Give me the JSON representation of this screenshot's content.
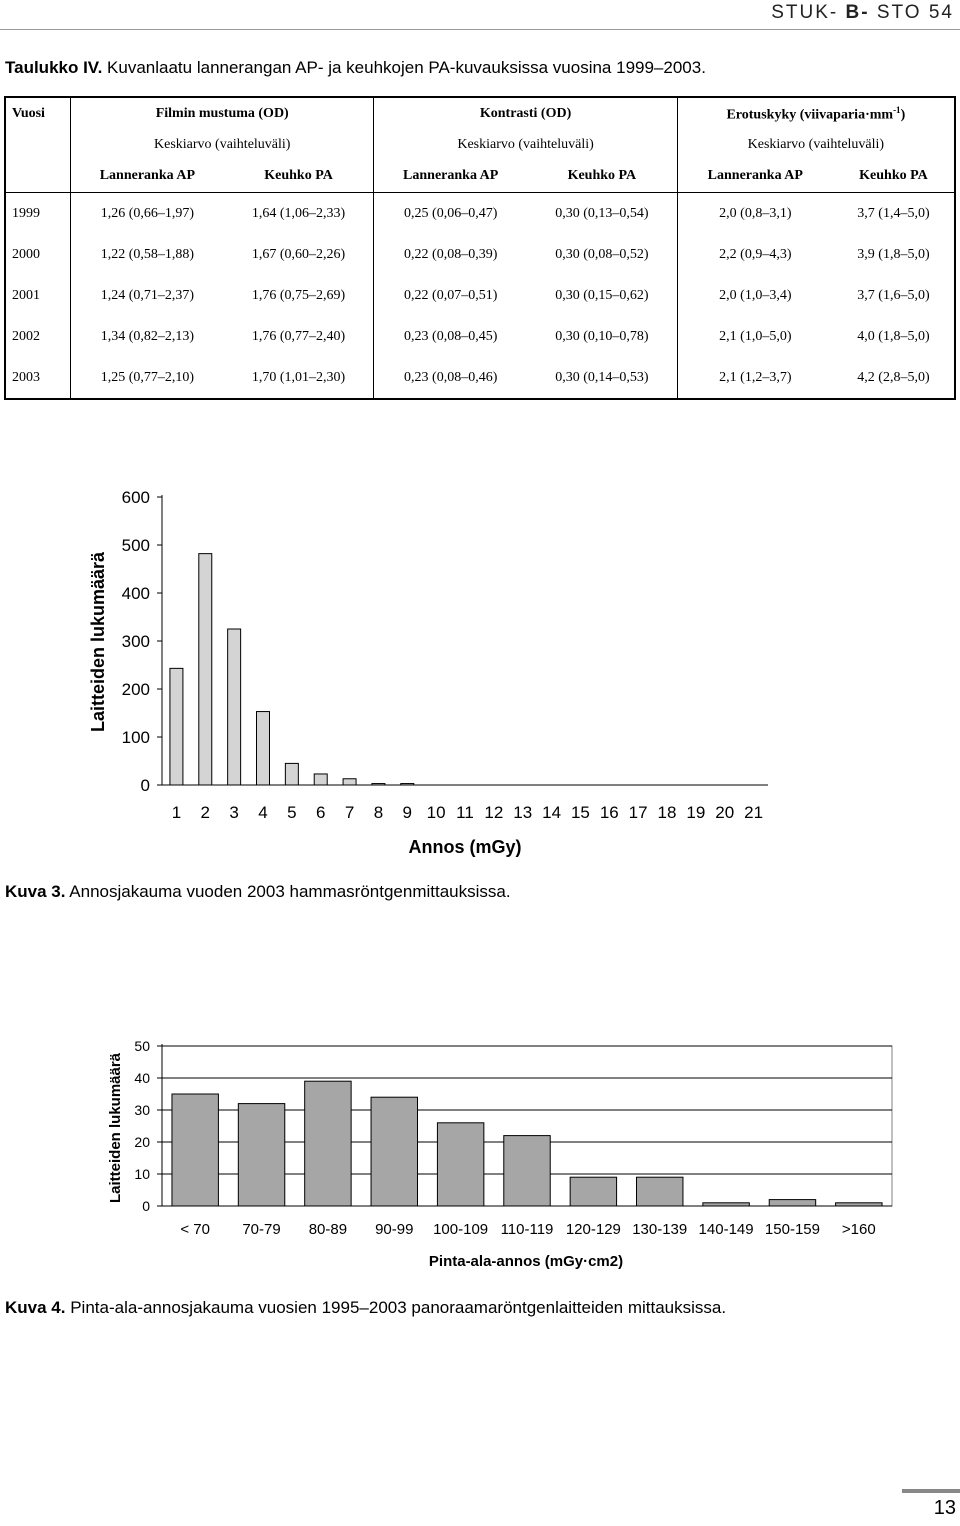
{
  "header": {
    "series_prefix": "STUK-",
    "series_bold": "B-",
    "series_suffix": "STO 54"
  },
  "table": {
    "caption_label": "Taulukko IV.",
    "caption_text": "Kuvanlaatu lannerangan AP- ja keuhkojen PA-kuvauksissa vuosina 1999–2003.",
    "col_year": "Vuosi",
    "groups": [
      {
        "title": "Filmin mustuma (OD)",
        "sup": "",
        "sub": "Keskiarvo (vaihteluväli)"
      },
      {
        "title": "Kontrasti (OD)",
        "sup": "",
        "sub": "Keskiarvo (vaihteluväli)"
      },
      {
        "title": "Erotuskyky (viivaparia·mm",
        "sup": "-1",
        "title_end": ")",
        "sub": "Keskiarvo (vaihteluväli)"
      }
    ],
    "subcols": [
      "Lanneranka AP",
      "Keuhko PA",
      "Lanneranka AP",
      "Keuhko PA",
      "Lanneranka AP",
      "Keuhko PA"
    ],
    "rows": [
      {
        "year": "1999",
        "cells": [
          "1,26 (0,66–1,97)",
          "1,64 (1,06–2,33)",
          "0,25 (0,06–0,47)",
          "0,30 (0,13–0,54)",
          "2,0 (0,8–3,1)",
          "3,7 (1,4–5,0)"
        ]
      },
      {
        "year": "2000",
        "cells": [
          "1,22 (0,58–1,88)",
          "1,67 (0,60–2,26)",
          "0,22 (0,08–0,39)",
          "0,30 (0,08–0,52)",
          "2,2 (0,9–4,3)",
          "3,9 (1,8–5,0)"
        ]
      },
      {
        "year": "2001",
        "cells": [
          "1,24 (0,71–2,37)",
          "1,76 (0,75–2,69)",
          "0,22 (0,07–0,51)",
          "0,30 (0,15–0,62)",
          "2,0 (1,0–3,4)",
          "3,7 (1,6–5,0)"
        ]
      },
      {
        "year": "2002",
        "cells": [
          "1,34 (0,82–2,13)",
          "1,76 (0,77–2,40)",
          "0,23 (0,08–0,45)",
          "0,30 (0,10–0,78)",
          "2,1 (1,0–5,0)",
          "4,0 (1,8–5,0)"
        ]
      },
      {
        "year": "2003",
        "cells": [
          "1,25 (0,77–2,10)",
          "1,70 (1,01–2,30)",
          "0,23 (0,08–0,46)",
          "0,30 (0,14–0,53)",
          "2,1 (1,2–3,7)",
          "4,2 (2,8–5,0)"
        ]
      }
    ]
  },
  "figure3": {
    "caption_label": "Kuva 3.",
    "caption_text": "Annosjakauma vuoden 2003 hammasröntgenmittauksissa."
  },
  "figure4": {
    "caption_label": "Kuva 4.",
    "caption_text": "Pinta-ala-annosjakauma vuosien 1995–2003 panoraamaröntgenlaitteiden mittauksissa."
  },
  "chart_data": [
    {
      "type": "bar",
      "title": "",
      "xlabel": "Annos (mGy)",
      "ylabel": "Laitteiden lukumäärä",
      "ylim": [
        0,
        600
      ],
      "yticks": [
        "0",
        "100",
        "200",
        "300",
        "400",
        "500",
        "600"
      ],
      "grid": false,
      "bar_color": "#d4d4d4",
      "categories": [
        "1",
        "2",
        "3",
        "4",
        "5",
        "6",
        "7",
        "8",
        "9",
        "10",
        "11",
        "12",
        "13",
        "14",
        "15",
        "16",
        "17",
        "18",
        "19",
        "20",
        "21"
      ],
      "values": [
        243,
        482,
        325,
        153,
        45,
        23,
        13,
        3,
        3,
        0,
        0,
        0,
        0,
        0,
        0,
        0,
        0,
        0,
        0,
        0,
        0
      ]
    },
    {
      "type": "bar",
      "title": "",
      "xlabel": "Pinta-ala-annos (mGy·cm2)",
      "ylabel": "Laitteiden lukumäärä",
      "ylim": [
        0,
        50
      ],
      "yticks": [
        "0",
        "10",
        "20",
        "30",
        "40",
        "50"
      ],
      "grid": true,
      "bar_color": "#a6a6a6",
      "categories": [
        "< 70",
        "70-79",
        "80-89",
        "90-99",
        "100-109",
        "110-119",
        "120-129",
        "130-139",
        "140-149",
        "150-159",
        ">160"
      ],
      "values": [
        35,
        32,
        39,
        34,
        26,
        22,
        9,
        9,
        1,
        2,
        1
      ]
    }
  ],
  "page_number": "13"
}
